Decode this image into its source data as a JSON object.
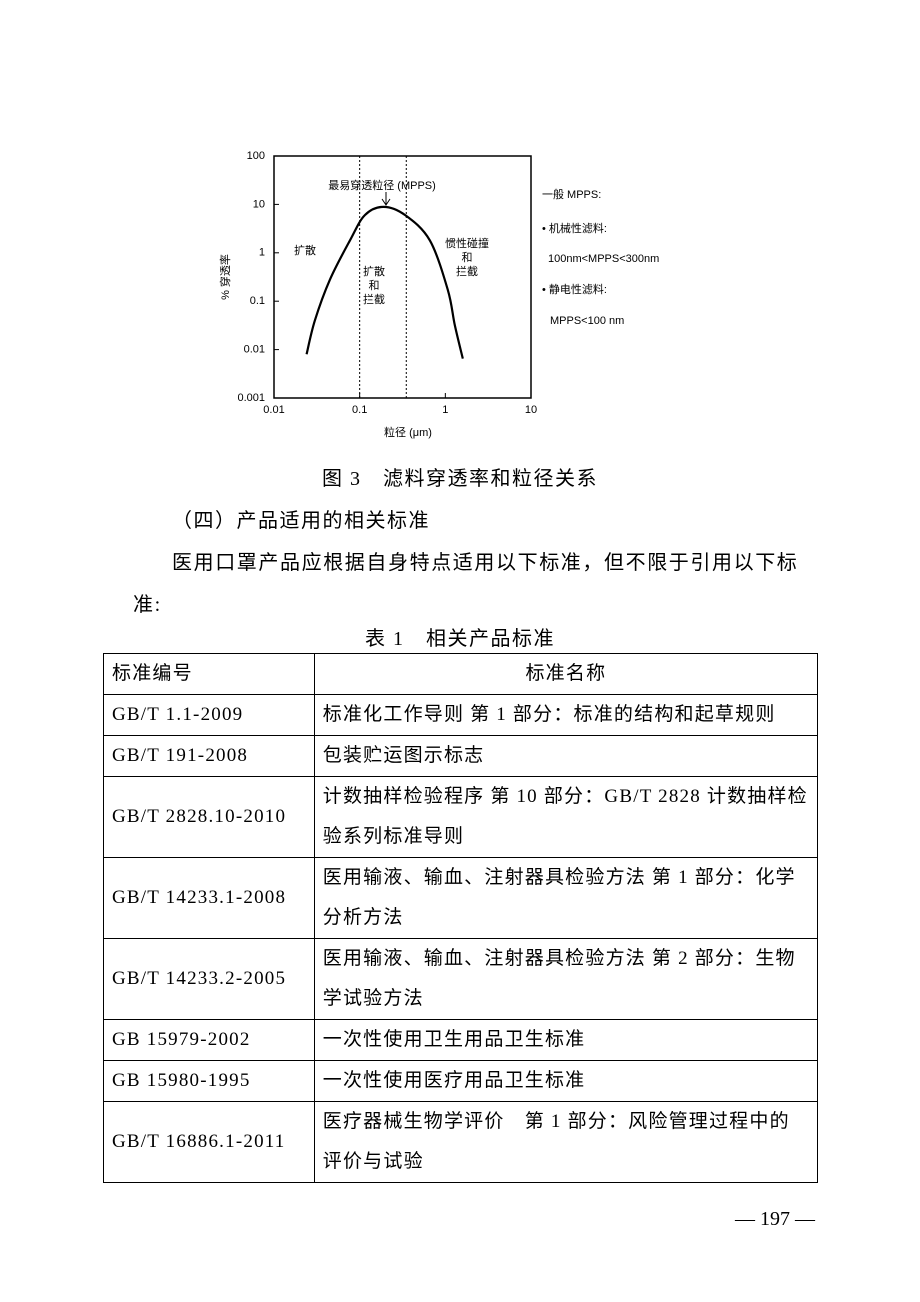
{
  "chart_data": {
    "type": "line",
    "xlog": true,
    "ylog": true,
    "xlabel": "粒径    (μm)",
    "ylabel": "% 穿透率",
    "xlim": [
      0.01,
      10
    ],
    "ylim": [
      0.001,
      100
    ],
    "xticks": [
      0.01,
      0.1,
      1,
      10
    ],
    "yticks": [
      0.001,
      0.01,
      0.1,
      1,
      10,
      100
    ],
    "series": [
      {
        "color": "#000000",
        "x": [
          0.024,
          0.03,
          0.045,
          0.077,
          0.115,
          0.19,
          0.34,
          0.66,
          1.07,
          1.29,
          1.6
        ],
        "values": [
          0.008,
          0.04,
          0.28,
          1.8,
          6,
          8.9,
          6,
          1.8,
          0.17,
          0.032,
          0.0065
        ]
      }
    ],
    "vlines": [
      0.1,
      0.35
    ],
    "annotations": [
      [
        "最易穿透粒径 (MPPS)"
      ],
      [
        "扩散"
      ],
      [
        "扩散",
        "和",
        "拦截"
      ],
      [
        "惯性碰撞",
        "和",
        "拦截"
      ]
    ],
    "notes": [
      "一般 MPPS:",
      "• 机械性滤料:",
      "100nm<MPPS<300nm",
      "• 静电性滤料:",
      "MPPS<100 nm"
    ]
  },
  "caption": "图 3　滤料穿透率和粒径关系",
  "heading": "（四）产品适用的相关标准",
  "paragraph": "医用口罩产品应根据自身特点适用以下标准，但不限于引用以下标准:",
  "table": {
    "title": "表 1　相关产品标准",
    "header": [
      "标准编号",
      "标准名称"
    ],
    "rows": [
      [
        "GB/T 1.1-2009",
        "标准化工作导则 第 1 部分：标准的结构和起草规则"
      ],
      [
        "GB/T 191-2008",
        "包装贮运图示标志"
      ],
      [
        "GB/T 2828.10-2010",
        "计数抽样检验程序 第 10 部分：GB/T 2828 计数抽样检验系列标准导则"
      ],
      [
        "GB/T 14233.1-2008",
        "医用输液、输血、注射器具检验方法 第 1 部分：化学分析方法"
      ],
      [
        "GB/T 14233.2-2005",
        "医用输液、输血、注射器具检验方法 第 2 部分：生物学试验方法"
      ],
      [
        "GB 15979-2002",
        "一次性使用卫生用品卫生标准"
      ],
      [
        "GB 15980-1995",
        "一次性使用医疗用品卫生标准"
      ],
      [
        "GB/T 16886.1-2011",
        "医疗器械生物学评价　第 1 部分：风险管理过程中的评价与试验"
      ]
    ]
  },
  "page_number": "— 197 —"
}
